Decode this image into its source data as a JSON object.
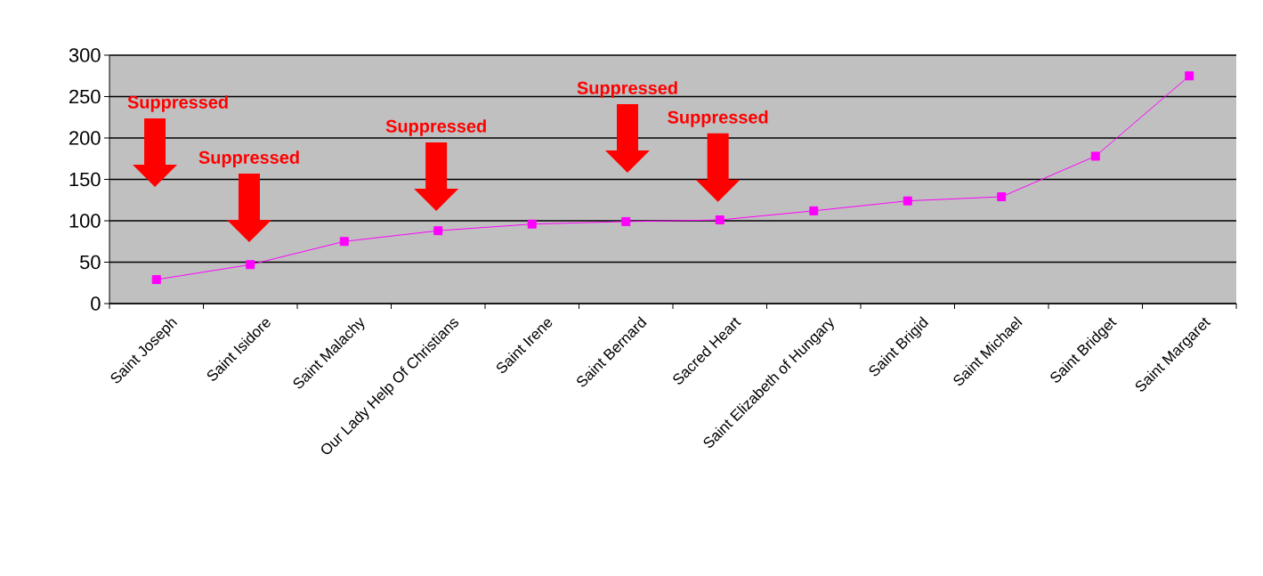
{
  "chart_data": {
    "type": "line",
    "categories": [
      "Saint Joseph",
      "Saint Isidore",
      "Saint Malachy",
      "Our Lady Help Of Christians",
      "Saint Irene",
      "Saint Bernard",
      "Sacred Heart",
      "Saint Elizabeth of Hungary",
      "Saint Brigid",
      "Saint Michael",
      "Saint Bridget",
      "Saint Margaret"
    ],
    "values": [
      29,
      47,
      75,
      88,
      96,
      99,
      101,
      112,
      124,
      129,
      178,
      275
    ],
    "color": "#ff00ff",
    "marker": "square",
    "line_style": "solid",
    "ylim": [
      0,
      300
    ],
    "yticks": [
      0,
      50,
      100,
      150,
      200,
      250,
      300
    ],
    "grid": "y",
    "annotations": [
      "Suppressed",
      "Suppressed",
      "Suppressed",
      "Suppressed",
      "Suppressed"
    ]
  }
}
